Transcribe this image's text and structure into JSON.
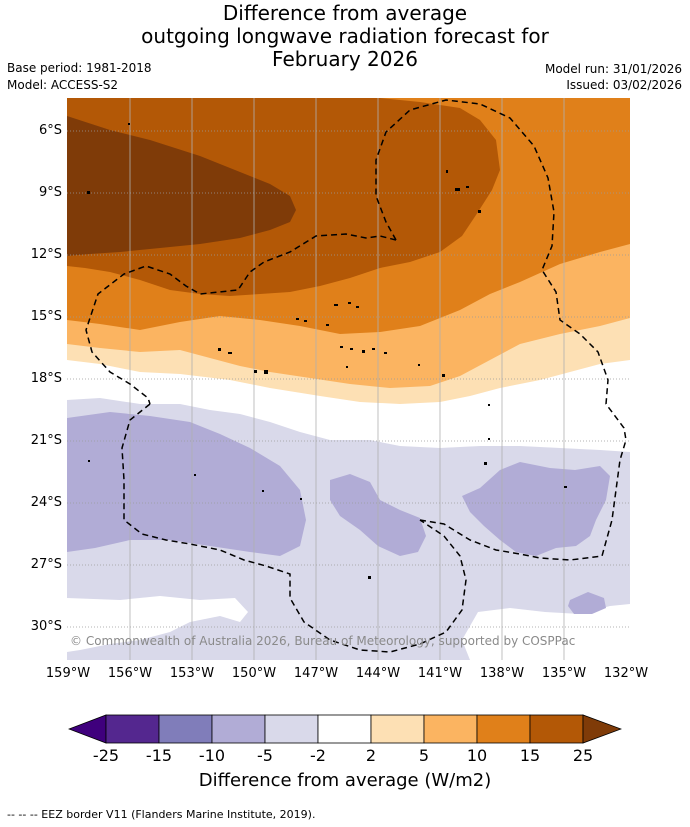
{
  "title": {
    "line1": "Difference from average",
    "line2": "outgoing longwave radiation forecast for",
    "line3": "February 2026"
  },
  "meta": {
    "base_period": "Base period: 1981-2018",
    "model": "Model: ACCESS-S2",
    "model_run": "Model run: 31/01/2026",
    "issued": "Issued: 03/02/2026"
  },
  "map": {
    "latitude_labels": [
      "6°S",
      "9°S",
      "12°S",
      "15°S",
      "18°S",
      "21°S",
      "24°S",
      "27°S",
      "30°S"
    ],
    "longitude_labels": [
      "159°W",
      "156°W",
      "153°W",
      "150°W",
      "147°W",
      "144°W",
      "141°W",
      "138°W",
      "135°W",
      "132°W"
    ],
    "copyright": "© Commonwealth of Australia 2026, Bureau of Meteorology, supported by COSPPac"
  },
  "colorbar": {
    "ticks": [
      "-25",
      "-15",
      "-10",
      "-5",
      "-2",
      "2",
      "5",
      "10",
      "15",
      "25"
    ],
    "colors": [
      "#3f007d",
      "#54278f",
      "#807dba",
      "#b1acd6",
      "#d9d9ea",
      "#ffffff",
      "#fde0b4",
      "#fbb461",
      "#e0801a",
      "#b35806",
      "#7f3b08"
    ],
    "label": "Difference from average (W/m2)"
  },
  "footer": "-- -- -- EEZ border V11 (Flanders Marine Institute, 2019)."
}
